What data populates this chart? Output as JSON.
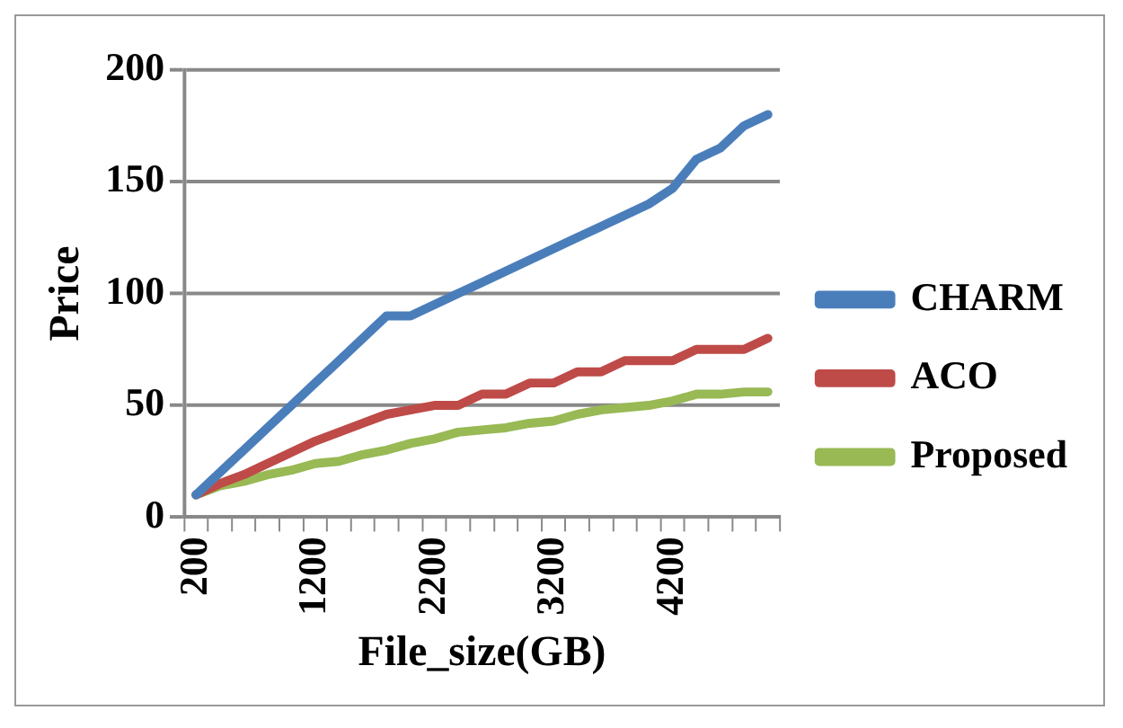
{
  "chart_data": {
    "type": "line",
    "xlabel": "File_size(GB)",
    "ylabel": "Price",
    "categories": [
      "200",
      null,
      null,
      null,
      null,
      "1200",
      null,
      null,
      null,
      null,
      "2200",
      null,
      null,
      null,
      null,
      "3200",
      null,
      null,
      null,
      null,
      "4200",
      null,
      null,
      null,
      null
    ],
    "series": [
      {
        "name": "CHARM",
        "color": "#4a7ebb",
        "values": [
          10,
          20,
          30,
          40,
          50,
          60,
          70,
          80,
          90,
          90,
          95,
          100,
          105,
          110,
          115,
          120,
          125,
          130,
          135,
          140,
          147,
          160,
          165,
          175,
          180
        ]
      },
      {
        "name": "ACO",
        "color": "#be4b48",
        "values": [
          10,
          15,
          19,
          24,
          29,
          34,
          38,
          42,
          46,
          48,
          50,
          50,
          55,
          55,
          60,
          60,
          65,
          65,
          70,
          70,
          70,
          75,
          75,
          75,
          80
        ]
      },
      {
        "name": "Proposed",
        "color": "#98b954",
        "values": [
          10,
          14,
          16,
          19,
          21,
          24,
          25,
          28,
          30,
          33,
          35,
          38,
          39,
          40,
          42,
          43,
          46,
          48,
          49,
          50,
          52,
          55,
          55,
          56,
          56
        ]
      }
    ],
    "ylim": [
      0,
      200
    ],
    "yticks": [
      0,
      50,
      100,
      150,
      200
    ],
    "grid": "y",
    "legend": "right",
    "marker": "none",
    "line_style": "solid"
  }
}
